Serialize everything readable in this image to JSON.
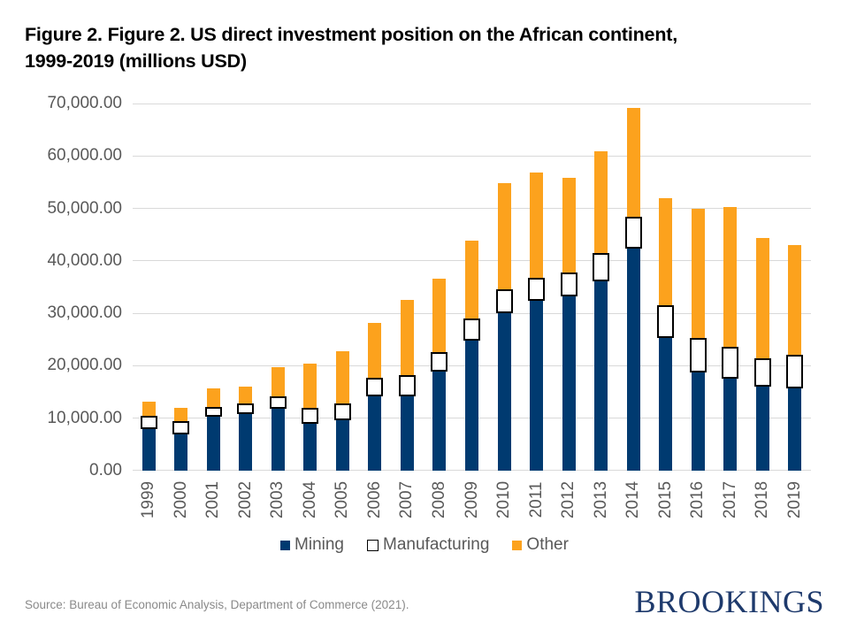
{
  "title_line1": "Figure 2. Figure 2. US direct investment position on the African continent,",
  "title_line2": "1999-2019 (millions USD)",
  "source_note": "Source: Bureau of Economic Analysis, Department of Commerce (2021).",
  "brand": "BROOKINGS",
  "colors": {
    "mining": "#003a70",
    "manufacturing_fill": "#ffffff",
    "manufacturing_border": "#000000",
    "other": "#fca21d",
    "gridline": "#d9d9d9",
    "axis_text": "#595959",
    "brand_navy": "#1e3a6c"
  },
  "chart_data": {
    "type": "bar",
    "stacked": true,
    "title": "Figure 2. Figure 2. US direct investment position on the African continent, 1999-2019 (millions USD)",
    "xlabel": "",
    "ylabel": "",
    "ylim": [
      0,
      70000
    ],
    "ytick_step": 10000,
    "ytick_labels": [
      "0.00",
      "10,000.00",
      "20,000.00",
      "30,000.00",
      "40,000.00",
      "50,000.00",
      "60,000.00",
      "70,000.00"
    ],
    "grid": true,
    "legend_position": "bottom",
    "categories": [
      "1999",
      "2000",
      "2001",
      "2002",
      "2003",
      "2004",
      "2005",
      "2006",
      "2007",
      "2008",
      "2009",
      "2010",
      "2011",
      "2012",
      "2013",
      "2014",
      "2015",
      "2016",
      "2017",
      "2018",
      "2019"
    ],
    "series": [
      {
        "name": "Mining",
        "color": "#003a70",
        "values": [
          8300,
          7300,
          10600,
          11200,
          12200,
          9300,
          10000,
          14500,
          14500,
          19200,
          25100,
          30300,
          32700,
          33600,
          36500,
          42700,
          25700,
          19100,
          17800,
          16300,
          16100
        ]
      },
      {
        "name": "Manufacturing",
        "color": "#ffffff",
        "border_color": "#000000",
        "values": [
          1800,
          1800,
          1200,
          1300,
          1700,
          2400,
          2500,
          2800,
          3400,
          3100,
          3500,
          4000,
          3800,
          3800,
          4700,
          5300,
          5500,
          5800,
          5500,
          4800,
          5700
        ]
      },
      {
        "name": "Other",
        "color": "#fca21d",
        "values": [
          3000,
          2800,
          3900,
          3600,
          5900,
          8700,
          10200,
          10800,
          14700,
          14300,
          15200,
          20500,
          20400,
          18500,
          19700,
          21100,
          20800,
          25000,
          27000,
          23200,
          21300
        ]
      }
    ],
    "totals": [
      13100,
      11900,
      15700,
      16100,
      19800,
      20400,
      22700,
      28100,
      32600,
      36600,
      43800,
      54800,
      56900,
      55900,
      60900,
      69100,
      52000,
      49900,
      50300,
      44300,
      43100
    ]
  }
}
